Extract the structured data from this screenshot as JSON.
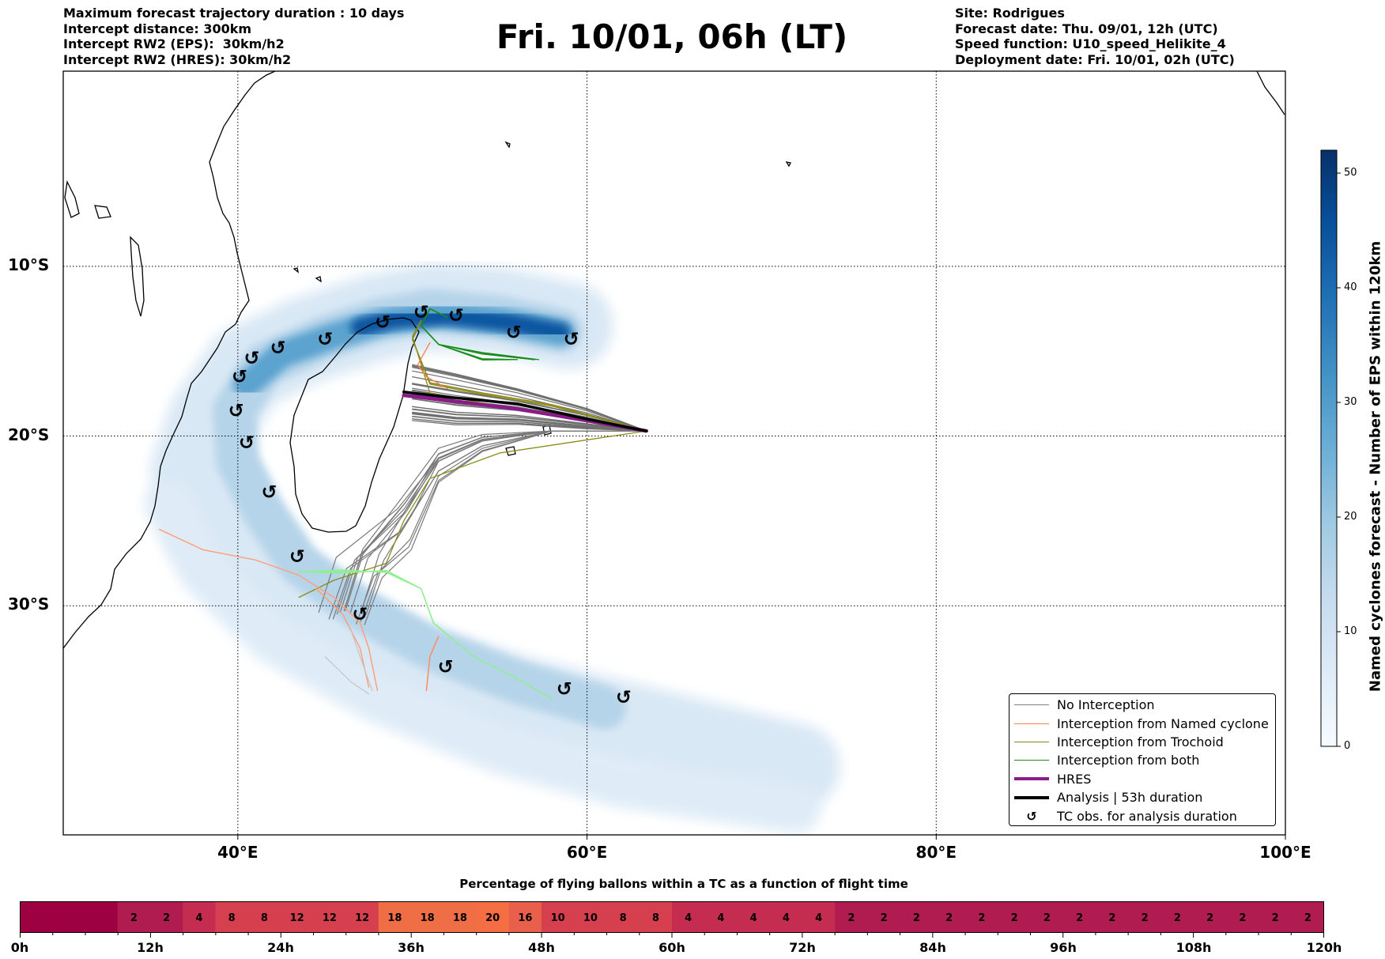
{
  "header_left": [
    "Maximum forecast trajectory duration : 10 days",
    "Intercept distance: 300km",
    "Intercept RW2 (EPS):  30km/h2",
    "Intercept RW2 (HRES): 30km/h2"
  ],
  "title": "Fri. 10/01, 06h (LT)",
  "header_right": [
    "Site: Rodrigues",
    "Forecast date: Thu. 09/01, 12h (UTC)",
    "Speed function: U10_speed_Helikite_4",
    "Deployment date: Fri. 10/01, 02h (UTC)"
  ],
  "map": {
    "lon_range": [
      30,
      100
    ],
    "lat_range": [
      -43.5,
      1.5
    ],
    "lat_ticks": [
      {
        "value": -10,
        "label": "10°S"
      },
      {
        "value": -20,
        "label": "20°S"
      },
      {
        "value": -30,
        "label": "30°S"
      }
    ],
    "lon_ticks": [
      {
        "value": 40,
        "label": "40°E"
      },
      {
        "value": 60,
        "label": "60°E"
      },
      {
        "value": 80,
        "label": "80°E"
      },
      {
        "value": 100,
        "label": "100°E"
      }
    ],
    "grid": "dotted",
    "site": {
      "lon": 63.4,
      "lat": -19.7
    },
    "hres_track": [
      [
        63.4,
        -19.7
      ],
      [
        60,
        -19.1
      ],
      [
        56,
        -18.4
      ],
      [
        52,
        -17.9
      ],
      [
        49.5,
        -17.6
      ]
    ],
    "analysis_track": [
      [
        63.4,
        -19.7
      ],
      [
        60,
        -19.0
      ],
      [
        56,
        -18.1
      ],
      [
        52,
        -17.7
      ],
      [
        49.5,
        -17.4
      ]
    ],
    "tc_observations": [
      [
        50.5,
        -12.7
      ],
      [
        52.5,
        -12.9
      ],
      [
        55.8,
        -13.9
      ],
      [
        59.1,
        -14.3
      ],
      [
        48.3,
        -13.3
      ],
      [
        45.0,
        -14.3
      ],
      [
        42.3,
        -14.8
      ],
      [
        40.8,
        -15.4
      ],
      [
        40.1,
        -16.5
      ],
      [
        39.9,
        -18.5
      ],
      [
        40.5,
        -20.4
      ],
      [
        41.8,
        -23.3
      ],
      [
        43.4,
        -27.1
      ],
      [
        47.0,
        -30.5
      ],
      [
        51.9,
        -33.6
      ],
      [
        58.7,
        -34.9
      ],
      [
        62.1,
        -35.4
      ]
    ]
  },
  "colorbar": {
    "label": "Named cyclones forecast - Number of EPS within 120km",
    "min": 0,
    "max": 52,
    "ticks": [
      0,
      10,
      20,
      30,
      40,
      50
    ],
    "colors": [
      "#f7fbff",
      "#deebf7",
      "#c6dbef",
      "#9ecae1",
      "#6baed6",
      "#4292c6",
      "#2171b5",
      "#08519c",
      "#08306b"
    ]
  },
  "legend": {
    "placement": "lower-right",
    "items": [
      {
        "label": "No Interception",
        "color": "#7f7f7f",
        "style": "line",
        "width": 1.5
      },
      {
        "label": "Interception from Named cyclone",
        "color": "#ff7f50",
        "style": "line",
        "width": 1.5
      },
      {
        "label": "Interception from Trochoid",
        "color": "#8b8b1a",
        "style": "line",
        "width": 1.5
      },
      {
        "label": "Interception from both",
        "color": "#1a8c1a",
        "style": "line",
        "width": 1.5
      },
      {
        "label": "HRES",
        "color": "#8b1a8b",
        "style": "line",
        "width": 4
      },
      {
        "label": "Analysis | 53h duration",
        "color": "#000000",
        "style": "line",
        "width": 4
      },
      {
        "label": "TC obs. for analysis duration",
        "color": "#000000",
        "style": "symbol",
        "symbol": "↺"
      }
    ]
  },
  "bar_chart": {
    "title": "Percentage of flying ballons within a TC as a function of flight time",
    "x_labels": [
      "0h",
      "12h",
      "24h",
      "36h",
      "48h",
      "60h",
      "72h",
      "84h",
      "96h",
      "108h",
      "120h"
    ],
    "x_max": 120,
    "step_hours": 3,
    "values": [
      0,
      0,
      0,
      2,
      2,
      4,
      8,
      8,
      12,
      12,
      12,
      18,
      18,
      18,
      20,
      16,
      10,
      10,
      8,
      8,
      4,
      4,
      4,
      4,
      4,
      2,
      2,
      2,
      2,
      2,
      2,
      2,
      2,
      2,
      2,
      2,
      2,
      2,
      2,
      2
    ]
  }
}
